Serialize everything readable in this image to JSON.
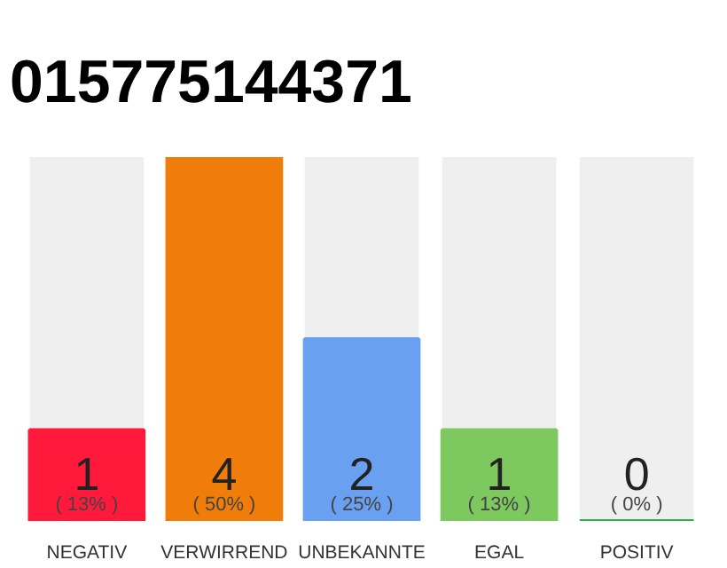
{
  "chart_data": {
    "type": "bar",
    "title": "015775144371",
    "categories": [
      "NEGATIV",
      "VERWIRREND",
      "UNBEKANNTE",
      "EGAL",
      "POSITIV"
    ],
    "values": [
      1,
      4,
      2,
      1,
      0
    ],
    "colors": [
      "#ff1a3c",
      "#f07c0a",
      "#6aa0f0",
      "#7ec95f",
      "#2bb14a"
    ],
    "value_labels": [
      "1",
      "4",
      "2",
      "1",
      "0"
    ],
    "annotations": [
      "( 13% )",
      "( 50% )",
      "( 25% )",
      "( 13% )",
      "( 0% )"
    ],
    "tick_labels": "x",
    "grid": false
  }
}
